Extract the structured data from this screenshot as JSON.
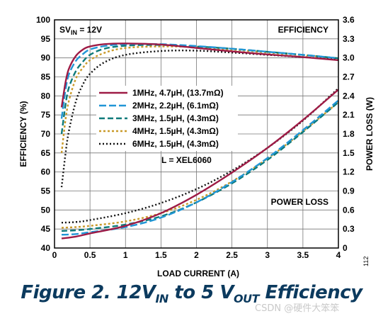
{
  "chart_data": {
    "type": "line",
    "xlabel": "LOAD CURRENT (A)",
    "ylabel_left": "EFFICIENCY (%)",
    "ylabel_right": "POWER LOSS (W)",
    "xlim": [
      0,
      4
    ],
    "ylim_left": [
      40,
      100
    ],
    "ylim_right": [
      0,
      3.6
    ],
    "x_ticks": [
      "0",
      "0.5",
      "1",
      "1.5",
      "2",
      "2.5",
      "3",
      "3.5",
      "4"
    ],
    "y_left_ticks": [
      "40",
      "45",
      "50",
      "55",
      "60",
      "65",
      "70",
      "75",
      "80",
      "85",
      "90",
      "95",
      "100"
    ],
    "y_right_ticks": [
      "0",
      "0.3",
      "0.6",
      "0.9",
      "1.2",
      "1.5",
      "1.8",
      "2.1",
      "2.4",
      "2.7",
      "3.0",
      "3.3",
      "3.6"
    ],
    "grid": true,
    "annotations": {
      "top_left": "SV",
      "top_left_sub": "IN",
      "top_left_rest": " = 12V",
      "efficiency": "EFFICIENCY",
      "power_loss": "POWER LOSS",
      "inductor": "L = XEL6060"
    },
    "series": [
      {
        "name": "1MHz, 4.7µH, (13.7mΩ)",
        "color": "#9e1b45",
        "dash": "",
        "efficiency": {
          "x": [
            0.1,
            0.15,
            0.2,
            0.3,
            0.4,
            0.5,
            0.7,
            1.0,
            1.5,
            2.0,
            2.5,
            3.0,
            3.5,
            4.0
          ],
          "y": [
            77,
            83,
            87,
            90.5,
            92.2,
            93.0,
            93.6,
            93.8,
            93.5,
            92.6,
            91.7,
            90.9,
            90.2,
            89.4
          ]
        },
        "power_loss": {
          "x": [
            0.1,
            0.3,
            0.5,
            1.0,
            1.5,
            2.0,
            2.5,
            3.0,
            3.5,
            4.0
          ],
          "y": [
            0.15,
            0.18,
            0.23,
            0.35,
            0.55,
            0.84,
            1.19,
            1.58,
            2.02,
            2.5
          ]
        }
      },
      {
        "name": "2MHz, 2.2µH, (6.1mΩ)",
        "color": "#2196d6",
        "dash": "10,4",
        "efficiency": {
          "x": [
            0.1,
            0.15,
            0.2,
            0.3,
            0.4,
            0.5,
            0.7,
            1.0,
            1.5,
            2.0,
            2.5,
            3.0,
            3.5,
            4.0
          ],
          "y": [
            74,
            81,
            85.5,
            89.2,
            91.0,
            92.2,
            93.1,
            93.6,
            93.6,
            93.1,
            92.4,
            91.6,
            90.8,
            89.9
          ]
        },
        "power_loss": {
          "x": [
            0.1,
            0.3,
            0.5,
            1.0,
            1.5,
            2.0,
            2.5,
            3.0,
            3.5,
            4.0
          ],
          "y": [
            0.21,
            0.22,
            0.25,
            0.33,
            0.48,
            0.72,
            1.04,
            1.42,
            1.86,
            2.33
          ]
        }
      },
      {
        "name": "3MHz, 1.5µH, (4.3mΩ)",
        "color": "#0e7a7a",
        "dash": "8,4",
        "efficiency": {
          "x": [
            0.1,
            0.15,
            0.2,
            0.3,
            0.4,
            0.5,
            0.7,
            1.0,
            1.5,
            2.0,
            2.5,
            3.0,
            3.5,
            4.0
          ],
          "y": [
            70,
            77,
            82,
            86.5,
            89.0,
            90.8,
            92.4,
            93.2,
            93.4,
            93.0,
            92.4,
            91.6,
            90.8,
            89.9
          ]
        },
        "power_loss": {
          "x": [
            0.1,
            0.3,
            0.5,
            1.0,
            1.5,
            2.0,
            2.5,
            3.0,
            3.5,
            4.0
          ],
          "y": [
            0.27,
            0.28,
            0.3,
            0.37,
            0.5,
            0.72,
            1.02,
            1.39,
            1.83,
            2.3
          ]
        }
      },
      {
        "name": "4MHz, 1.5µH, (4.3mΩ)",
        "color": "#c99a2a",
        "dash": "3,3",
        "efficiency": {
          "x": [
            0.1,
            0.15,
            0.2,
            0.3,
            0.4,
            0.5,
            0.7,
            1.0,
            1.5,
            2.0,
            2.5,
            3.0,
            3.5,
            4.0
          ],
          "y": [
            65,
            73,
            78.5,
            84.5,
            87.4,
            89.4,
            91.3,
            92.6,
            93.0,
            92.8,
            92.2,
            91.4,
            90.7,
            89.9
          ]
        },
        "power_loss": {
          "x": [
            0.1,
            0.3,
            0.5,
            1.0,
            1.5,
            2.0,
            2.5,
            3.0,
            3.5,
            4.0
          ],
          "y": [
            0.32,
            0.33,
            0.35,
            0.42,
            0.55,
            0.76,
            1.05,
            1.41,
            1.84,
            2.3
          ]
        }
      },
      {
        "name": "6MHz, 1.5µH, (4.3mΩ)",
        "color": "#111111",
        "dash": "2,3",
        "efficiency": {
          "x": [
            0.1,
            0.15,
            0.2,
            0.3,
            0.4,
            0.5,
            0.7,
            1.0,
            1.5,
            2.0,
            2.5,
            3.0,
            3.5,
            4.0
          ],
          "y": [
            56,
            64,
            70.5,
            78.5,
            83.0,
            85.8,
            88.8,
            90.8,
            91.8,
            91.9,
            91.4,
            90.8,
            90.2,
            89.6
          ]
        },
        "power_loss": {
          "x": [
            0.1,
            0.3,
            0.5,
            1.0,
            1.5,
            2.0,
            2.5,
            3.0,
            3.5,
            4.0
          ],
          "y": [
            0.4,
            0.41,
            0.44,
            0.55,
            0.71,
            0.93,
            1.22,
            1.58,
            2.01,
            2.52
          ]
        }
      }
    ]
  },
  "caption": {
    "prefix": "Figure 2. 12V",
    "sub1": "IN",
    "middle": " to 5 V",
    "sub2": "OUT",
    "suffix": " Efficiency"
  },
  "figure_number": "112",
  "watermark": "CSDN @硬件大笨笨"
}
